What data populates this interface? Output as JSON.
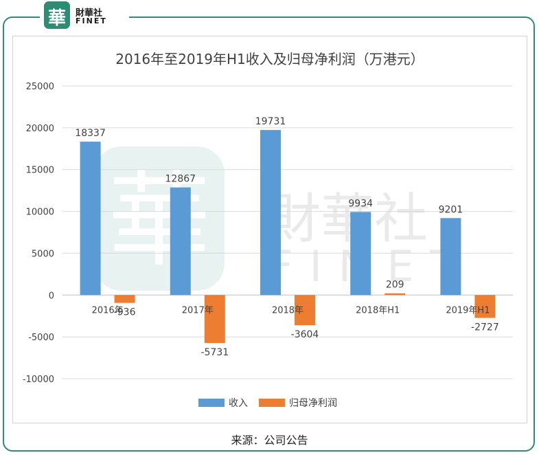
{
  "brand": {
    "logo_char": "華",
    "name_cn": "財華社",
    "name_en": "FINET"
  },
  "watermark": {
    "text_cn": "財華社",
    "text_en": "FINET",
    "seal_char": "華"
  },
  "source_text": "来源：公司公告",
  "colors": {
    "frame": "#2e8b74",
    "revenue": "#5b9bd5",
    "profit": "#ed7d31",
    "grid": "#d9d9d9",
    "axis_text": "#404040"
  },
  "chart_data": {
    "type": "bar",
    "title": "2016年至2019年H1收入及归母净利润（万港元）",
    "categories": [
      "2016年",
      "2017年",
      "2018年",
      "2018年H1",
      "2019年H1"
    ],
    "series": [
      {
        "name": "收入",
        "values": [
          18337,
          12867,
          19731,
          9934,
          9201
        ]
      },
      {
        "name": "归母净利润",
        "values": [
          -936,
          -5731,
          -3604,
          209,
          -2727
        ]
      }
    ],
    "ylim": [
      -10000,
      25000
    ],
    "yticks": [
      -10000,
      -5000,
      0,
      5000,
      10000,
      15000,
      20000,
      25000
    ],
    "grid": true,
    "legend": "bottom",
    "data_labels": true
  }
}
